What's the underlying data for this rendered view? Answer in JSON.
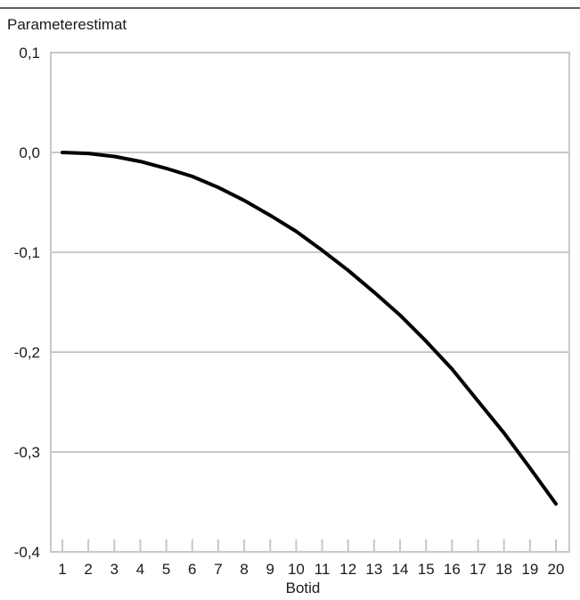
{
  "chart_data": {
    "type": "line",
    "ylabel": "Parameterestimat",
    "xlabel": "Botid",
    "x": [
      1,
      2,
      3,
      4,
      5,
      6,
      7,
      8,
      9,
      10,
      11,
      12,
      13,
      14,
      15,
      16,
      17,
      18,
      19,
      20
    ],
    "x_tick_labels": [
      "1",
      "2",
      "3",
      "4",
      "5",
      "6",
      "7",
      "8",
      "9",
      "10",
      "11",
      "12",
      "13",
      "14",
      "15",
      "16",
      "17",
      "18",
      "19",
      "20"
    ],
    "series": [
      {
        "values": [
          0.0,
          -0.001,
          -0.004,
          -0.009,
          -0.016,
          -0.024,
          -0.035,
          -0.048,
          -0.063,
          -0.079,
          -0.098,
          -0.118,
          -0.14,
          -0.163,
          -0.189,
          -0.217,
          -0.249,
          -0.281,
          -0.316,
          -0.352
        ]
      }
    ],
    "ylim": [
      -0.4,
      0.1
    ],
    "y_ticks": [
      0.1,
      0.0,
      -0.1,
      -0.2,
      -0.3,
      -0.4
    ],
    "y_tick_labels": [
      "0,1",
      "0,0",
      "-0,1",
      "-0,2",
      "-0,3",
      "-0,4"
    ],
    "grid": true,
    "colors": {
      "line": "#000000",
      "grid": "#c8c8c8",
      "frame": "#c8c8c8",
      "top_rule": "#000000",
      "text": "#1a1a1a"
    }
  }
}
